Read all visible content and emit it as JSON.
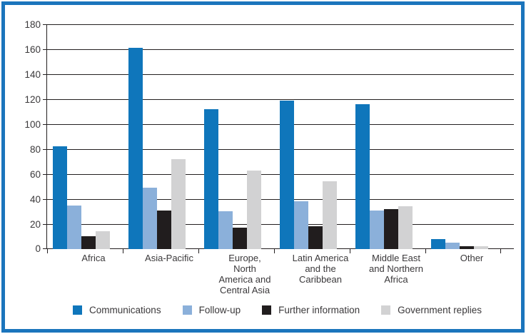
{
  "chart_data": {
    "type": "bar",
    "title": "",
    "xlabel": "",
    "ylabel": "",
    "ylim": [
      0,
      180
    ],
    "ytick_step": 20,
    "yticks": [
      0,
      20,
      40,
      60,
      80,
      100,
      120,
      140,
      160,
      180
    ],
    "grid": true,
    "legend_position": "bottom",
    "frame_color": "#1B75BC",
    "axis_color": "#231F20",
    "categories": [
      "Africa",
      "Asia-Pacific",
      "Europe,\nNorth\nAmerica and\nCentral Asia",
      "Latin America\nand the\nCaribbean",
      "Middle East\nand Northern\nAfrica",
      "Other"
    ],
    "series": [
      {
        "name": "Communications",
        "color": "#0F76BB",
        "values": [
          82,
          161,
          112,
          119,
          116,
          8
        ]
      },
      {
        "name": "Follow-up",
        "color": "#8BB0DA",
        "values": [
          35,
          49,
          30,
          38,
          31,
          5
        ]
      },
      {
        "name": "Further information",
        "color": "#211D1E",
        "values": [
          10,
          31,
          17,
          18,
          32,
          2
        ]
      },
      {
        "name": "Government replies",
        "color": "#D2D2D3",
        "values": [
          14,
          72,
          63,
          54,
          34,
          2
        ]
      }
    ]
  }
}
